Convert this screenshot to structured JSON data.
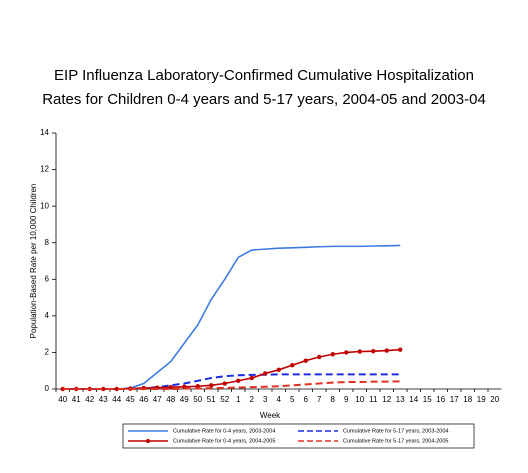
{
  "chart_data": {
    "type": "line",
    "title": [
      "EIP Influenza Laboratory-Confirmed Cumulative Hospitalization",
      "Rates for Children 0-4 years and 5-17 years, 2004-05 and 2003-04"
    ],
    "x_label": "Week",
    "y_label": "Population-Based Rate per 10,000 Children",
    "categories": [
      "40",
      "41",
      "42",
      "43",
      "44",
      "45",
      "46",
      "47",
      "48",
      "49",
      "50",
      "51",
      "52",
      "1",
      "2",
      "3",
      "4",
      "5",
      "6",
      "7",
      "8",
      "9",
      "10",
      "11",
      "12",
      "13",
      "14",
      "15",
      "16",
      "17",
      "18",
      "19",
      "20"
    ],
    "ylim": [
      0,
      14
    ],
    "yticks": [
      0,
      2,
      4,
      6,
      8,
      10,
      12,
      14
    ],
    "grid": false,
    "series": [
      {
        "name": "Cumulative Rate for 0-4 years, 2003-2004",
        "color": "#3d7be0",
        "style": "solid",
        "marker": false,
        "values": [
          0,
          0,
          0,
          0,
          0,
          0.05,
          0.3,
          0.9,
          1.5,
          2.5,
          3.5,
          4.9,
          6.0,
          7.2,
          7.6,
          7.65,
          7.7,
          7.72,
          7.75,
          7.78,
          7.8,
          7.8,
          7.8,
          7.82,
          7.83,
          7.85,
          null,
          null,
          null,
          null,
          null,
          null,
          null
        ]
      },
      {
        "name": "Cumulative Rate for 5-17 years, 2003-2004",
        "color": "#1a2ee0",
        "style": "dashed",
        "marker": false,
        "values": [
          0,
          0,
          0,
          0,
          0,
          0,
          0.05,
          0.1,
          0.2,
          0.3,
          0.45,
          0.6,
          0.7,
          0.75,
          0.77,
          0.78,
          0.8,
          0.8,
          0.8,
          0.8,
          0.8,
          0.8,
          0.8,
          0.8,
          0.8,
          0.8,
          null,
          null,
          null,
          null,
          null,
          null,
          null
        ]
      },
      {
        "name": "Cumulative Rate for 0-4 years, 2004-2005",
        "color": "#c00000",
        "style": "solid",
        "marker": true,
        "values": [
          0,
          0,
          0,
          0,
          0,
          0.02,
          0.05,
          0.07,
          0.1,
          0.12,
          0.15,
          0.2,
          0.3,
          0.45,
          0.6,
          0.85,
          1.05,
          1.3,
          1.55,
          1.75,
          1.9,
          2.0,
          2.05,
          2.07,
          2.1,
          2.15,
          null,
          null,
          null,
          null,
          null,
          null,
          null
        ]
      },
      {
        "name": "Cumulative Rate for 5-17 years, 2004-2005",
        "color": "#e03020",
        "style": "dashed",
        "marker": false,
        "values": [
          0,
          0,
          0,
          0,
          0,
          0,
          0,
          0,
          0,
          0.02,
          0.03,
          0.05,
          0.06,
          0.08,
          0.1,
          0.12,
          0.15,
          0.2,
          0.25,
          0.3,
          0.35,
          0.38,
          0.38,
          0.4,
          0.4,
          0.42,
          null,
          null,
          null,
          null,
          null,
          null,
          null
        ]
      }
    ]
  }
}
